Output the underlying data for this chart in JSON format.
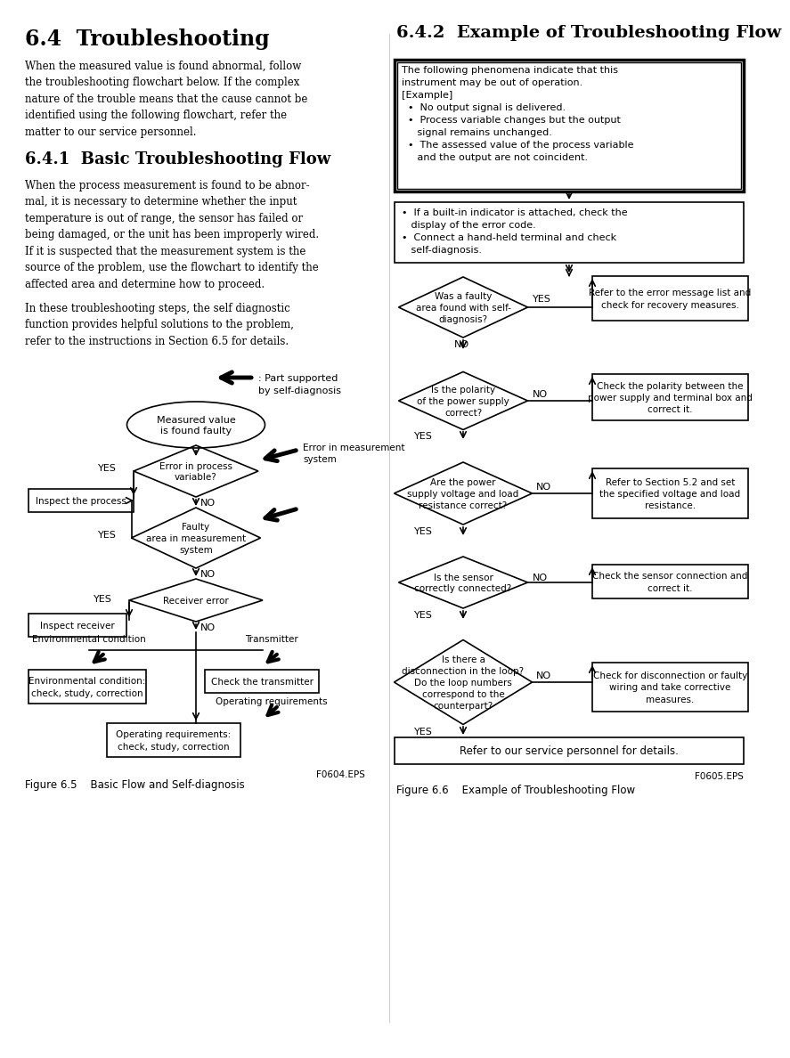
{
  "bg_color": "#ffffff",
  "left_heading": "6.4  Troubleshooting",
  "left_para1": "When the measured value is found abnormal, follow\nthe troubleshooting flowchart below. If the complex\nnature of the trouble means that the cause cannot be\nidentified using the following flowchart, refer the\nmatter to our service personnel.",
  "left_subheading": "6.4.1  Basic Troubleshooting Flow",
  "left_para2": "When the process measurement is found to be abnor-\nmal, it is necessary to determine whether the input\ntemperature is out of range, the sensor has failed or\nbeing damaged, or the unit has been improperly wired.\nIf it is suspected that the measurement system is the\nsource of the problem, use the flowchart to identify the\naffected area and determine how to proceed.",
  "left_para3": "In these troubleshooting steps, the self diagnostic\nfunction provides helpful solutions to the problem,\nrefer to the instructions in Section 6.5 for details.",
  "right_heading": "6.4.2  Example of Troubleshooting Flow",
  "right_box1_line1": "The following phenomena indicate that this",
  "right_box1_line2": "instrument may be out of operation.",
  "right_box1_line3": "[Example]",
  "right_box1_line4": "  •  No output signal is delivered.",
  "right_box1_line5": "  •  Process variable changes but the output",
  "right_box1_line6": "     signal remains unchanged.",
  "right_box1_line7": "  •  The assessed value of the process variable",
  "right_box1_line8": "     and the output are not coincident.",
  "right_box2_line1": "•  If a built-in indicator is attached, check the",
  "right_box2_line2": "   display of the error code.",
  "right_box2_line3": "•  Connect a hand-held terminal and check",
  "right_box2_line4": "   self-diagnosis.",
  "fig5_caption": "Figure 6.5    Basic Flow and Self-diagnosis",
  "fig6_caption": "Figure 6.6    Example of Troubleshooting Flow",
  "fig5_label": "F0604.EPS",
  "fig6_label": "F0605.EPS"
}
